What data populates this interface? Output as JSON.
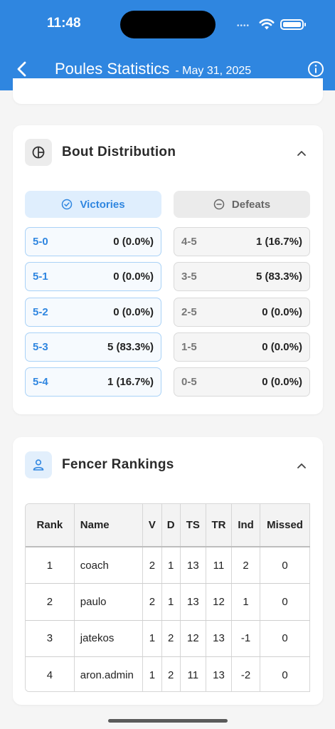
{
  "status_bar": {
    "time": "11:48",
    "signal_dots": "••••"
  },
  "header": {
    "title": "Poules Statistics",
    "date": "- May 31, 2025",
    "accent": "#2f86e0"
  },
  "bout_distribution": {
    "title": "Bout Distribution",
    "victories_label": "Victories",
    "defeats_label": "Defeats",
    "victories": [
      {
        "score": "5-0",
        "value": "0 (0.0%)"
      },
      {
        "score": "5-1",
        "value": "0 (0.0%)"
      },
      {
        "score": "5-2",
        "value": "0 (0.0%)"
      },
      {
        "score": "5-3",
        "value": "5 (83.3%)"
      },
      {
        "score": "5-4",
        "value": "1 (16.7%)"
      }
    ],
    "defeats": [
      {
        "score": "4-5",
        "value": "1 (16.7%)"
      },
      {
        "score": "3-5",
        "value": "5 (83.3%)"
      },
      {
        "score": "2-5",
        "value": "0 (0.0%)"
      },
      {
        "score": "1-5",
        "value": "0 (0.0%)"
      },
      {
        "score": "0-5",
        "value": "0 (0.0%)"
      }
    ]
  },
  "fencer_rankings": {
    "title": "Fencer Rankings",
    "columns": [
      "Rank",
      "Name",
      "V",
      "D",
      "TS",
      "TR",
      "Ind",
      "Missed"
    ],
    "rows": [
      [
        "1",
        "coach",
        "2",
        "1",
        "13",
        "11",
        "2",
        "0"
      ],
      [
        "2",
        "paulo",
        "2",
        "1",
        "13",
        "12",
        "1",
        "0"
      ],
      [
        "3",
        "jatekos",
        "1",
        "2",
        "12",
        "13",
        "-1",
        "0"
      ],
      [
        "4",
        "aron.admin",
        "1",
        "2",
        "11",
        "13",
        "-2",
        "0"
      ]
    ]
  }
}
